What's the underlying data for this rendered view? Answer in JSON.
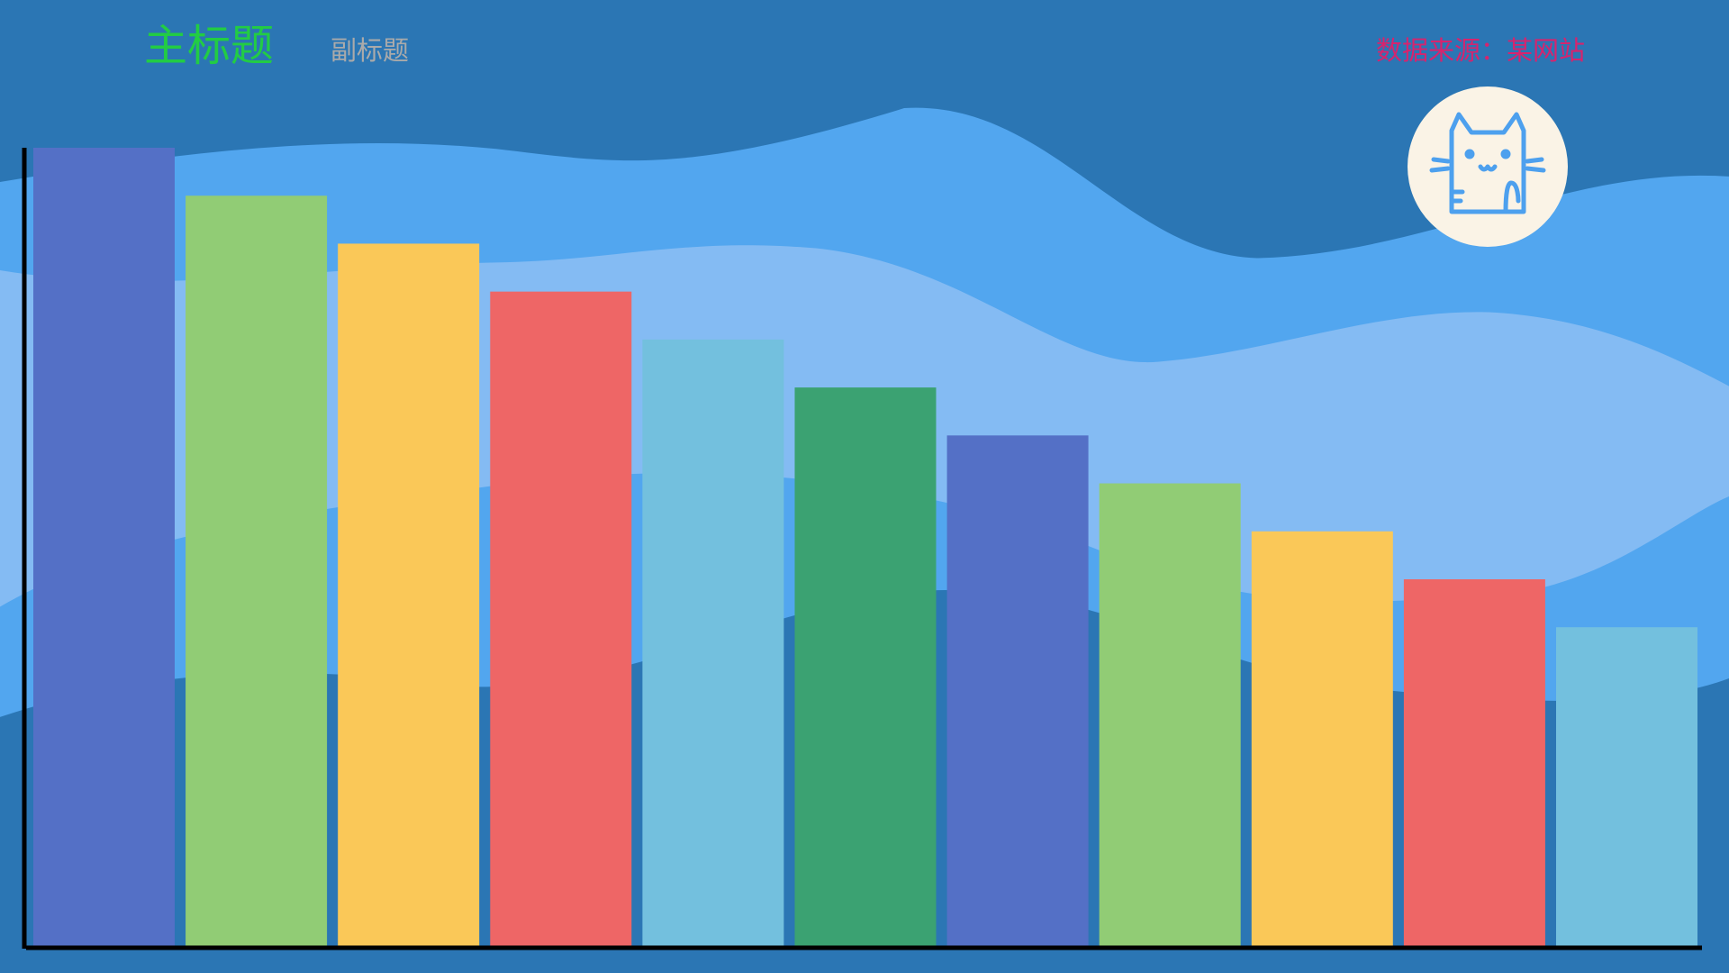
{
  "chart_data": {
    "type": "bar",
    "title": "主标题",
    "subtitle": "副标题",
    "source": "数据来源：某网站",
    "values": [
      50,
      47,
      44,
      41,
      38,
      35,
      32,
      29,
      26,
      23,
      20
    ],
    "colors": [
      "#5470c6",
      "#91cc75",
      "#fac858",
      "#ee6666",
      "#73c0de",
      "#3ba272"
    ],
    "ylim": [
      0,
      50
    ]
  }
}
